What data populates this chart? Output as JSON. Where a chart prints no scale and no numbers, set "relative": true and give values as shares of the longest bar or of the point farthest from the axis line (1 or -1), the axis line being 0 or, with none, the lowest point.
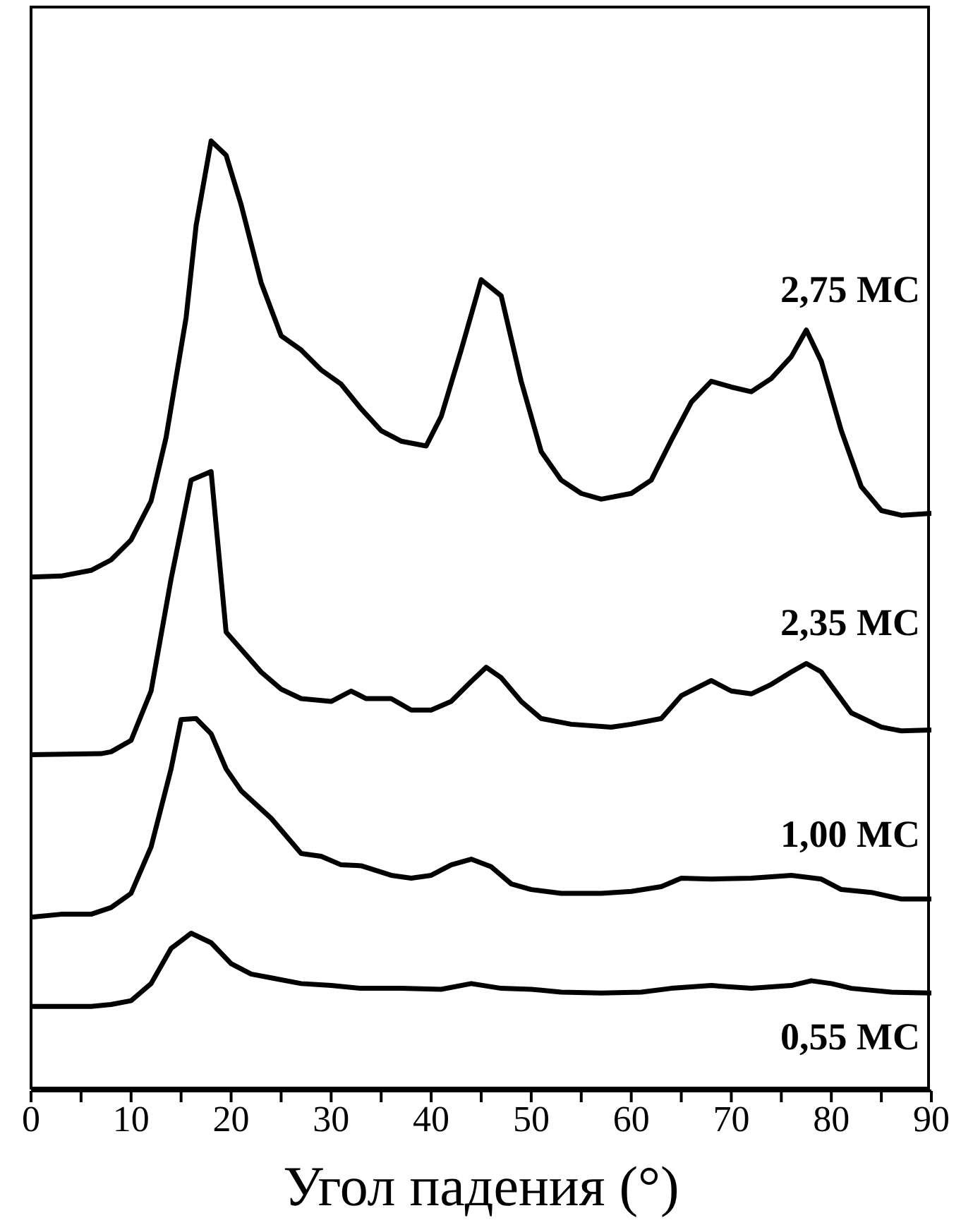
{
  "chart_data": {
    "type": "line",
    "relative": true,
    "xlabel": "Угол падения (°)",
    "xlim": [
      0,
      90
    ],
    "xticks": [
      0,
      {
        "value": 5,
        "label": null
      },
      10,
      {
        "value": 15,
        "label": null
      },
      20,
      {
        "value": 25,
        "label": null
      },
      30,
      {
        "value": 35,
        "label": null
      },
      40,
      {
        "value": 45,
        "label": null
      },
      50,
      {
        "value": 55,
        "label": null
      },
      60,
      {
        "value": 65,
        "label": null
      },
      70,
      {
        "value": 75,
        "label": null
      },
      80,
      {
        "value": 85,
        "label": null
      },
      90
    ],
    "series": [
      {
        "name": "2,75 МС",
        "color": "#000000",
        "x": [
          0,
          3,
          6,
          8,
          10,
          12,
          13.5,
          15.5,
          16.5,
          18,
          19.5,
          21,
          23,
          25,
          27,
          29,
          31,
          33,
          35,
          37,
          39.5,
          41,
          43,
          45,
          47,
          49,
          51,
          53,
          55,
          57,
          60,
          62,
          64,
          66,
          68,
          70,
          72,
          74,
          76,
          77.5,
          79,
          81,
          83,
          85,
          87,
          90
        ],
        "values": [
          0.541,
          0.542,
          0.548,
          0.559,
          0.58,
          0.621,
          0.688,
          0.814,
          0.911,
          1,
          0.985,
          0.933,
          0.851,
          0.795,
          0.78,
          0.759,
          0.744,
          0.718,
          0.695,
          0.684,
          0.679,
          0.71,
          0.78,
          0.854,
          0.837,
          0.747,
          0.673,
          0.643,
          0.629,
          0.623,
          0.629,
          0.643,
          0.685,
          0.725,
          0.747,
          0.741,
          0.736,
          0.75,
          0.773,
          0.801,
          0.768,
          0.695,
          0.636,
          0.611,
          0.606,
          0.608
        ]
      },
      {
        "name": "2,35 МС",
        "color": "#000000",
        "x": [
          0,
          7,
          8,
          10,
          12,
          14,
          16,
          18,
          19.5,
          21,
          23,
          25,
          27,
          30,
          32,
          33.5,
          36,
          38,
          40,
          42,
          44,
          45.5,
          47,
          49,
          51,
          54,
          58,
          60,
          63,
          65,
          68,
          70,
          72,
          74,
          76,
          77.5,
          79,
          82,
          85,
          87,
          90
        ],
        "values": [
          0.354,
          0.355,
          0.357,
          0.369,
          0.421,
          0.539,
          0.643,
          0.652,
          0.483,
          0.465,
          0.441,
          0.423,
          0.413,
          0.41,
          0.421,
          0.413,
          0.413,
          0.401,
          0.401,
          0.41,
          0.431,
          0.446,
          0.435,
          0.41,
          0.392,
          0.386,
          0.383,
          0.386,
          0.392,
          0.416,
          0.432,
          0.421,
          0.418,
          0.428,
          0.441,
          0.45,
          0.441,
          0.398,
          0.383,
          0.379,
          0.38
        ]
      },
      {
        "name": "1,00 МС",
        "color": "#000000",
        "x": [
          0,
          3,
          6,
          8,
          10,
          12,
          14,
          15,
          16.5,
          18,
          19.5,
          21,
          24,
          27,
          29,
          31,
          33,
          36,
          38,
          40,
          42,
          44,
          46,
          48,
          50,
          53,
          57,
          60,
          63,
          65,
          68,
          72,
          76,
          79,
          81,
          84,
          87,
          90
        ],
        "values": [
          0.183,
          0.186,
          0.186,
          0.193,
          0.208,
          0.257,
          0.339,
          0.391,
          0.392,
          0.376,
          0.339,
          0.316,
          0.287,
          0.25,
          0.247,
          0.238,
          0.237,
          0.227,
          0.224,
          0.227,
          0.238,
          0.244,
          0.236,
          0.218,
          0.212,
          0.208,
          0.208,
          0.21,
          0.215,
          0.224,
          0.223,
          0.224,
          0.227,
          0.223,
          0.212,
          0.209,
          0.202,
          0.202
        ]
      },
      {
        "name": "0,55 МС",
        "color": "#000000",
        "x": [
          0,
          6,
          8,
          10,
          12,
          14,
          16,
          18,
          20,
          22,
          24,
          27,
          30,
          33,
          37,
          41,
          44,
          47,
          50,
          53,
          57,
          61,
          64,
          68,
          72,
          76,
          78,
          80,
          82,
          86,
          90
        ],
        "values": [
          0.089,
          0.089,
          0.091,
          0.095,
          0.113,
          0.15,
          0.166,
          0.156,
          0.134,
          0.123,
          0.119,
          0.113,
          0.111,
          0.108,
          0.108,
          0.107,
          0.113,
          0.108,
          0.107,
          0.104,
          0.103,
          0.104,
          0.108,
          0.111,
          0.108,
          0.111,
          0.116,
          0.113,
          0.108,
          0.104,
          0.103
        ]
      }
    ]
  }
}
